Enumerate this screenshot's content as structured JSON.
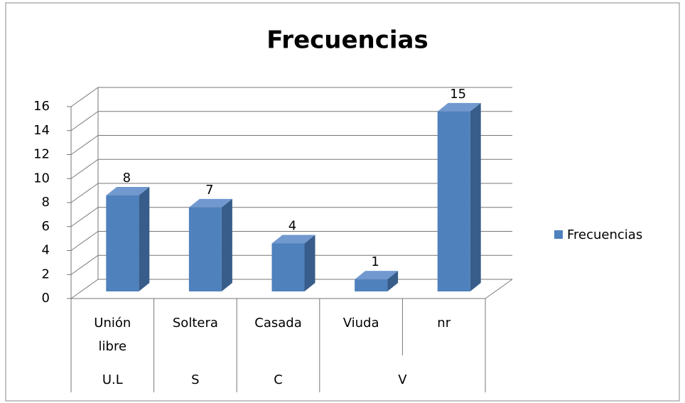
{
  "chart_data": {
    "type": "bar",
    "title": "Frecuencias",
    "categories": [
      "Unión libre",
      "Soltera",
      "Casada",
      "Viuda",
      "nr"
    ],
    "category_groups": [
      {
        "label": "U.L",
        "count": 1
      },
      {
        "label": "S",
        "count": 1
      },
      {
        "label": "C",
        "count": 1
      },
      {
        "label": "V",
        "count": 2
      }
    ],
    "series": [
      {
        "name": "Frecuencias",
        "color": "#4f81bd",
        "values": [
          8,
          7,
          4,
          1,
          15
        ]
      }
    ],
    "ylim": [
      0,
      16
    ],
    "yticks": [
      0,
      2,
      4,
      6,
      8,
      10,
      12,
      14,
      16
    ],
    "grid": true,
    "legend": "right",
    "data_labels": true
  }
}
